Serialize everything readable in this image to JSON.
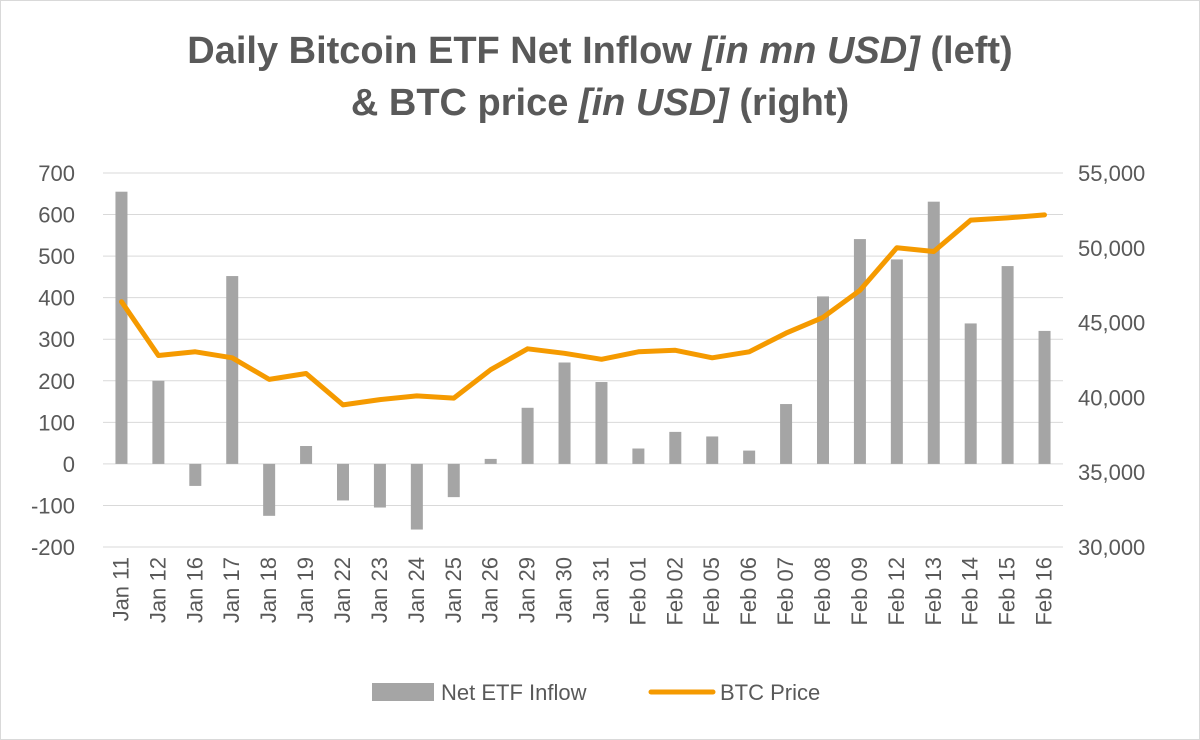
{
  "title": {
    "line1_a": "Daily Bitcoin ETF Net Inflow ",
    "line1_b": "[in mn USD]",
    "line1_c": " (left)",
    "line2_a": "& BTC price ",
    "line2_b": "[in USD]",
    "line2_c": " (right)"
  },
  "colors": {
    "bars": "#a5a5a5",
    "line": "#f59a00",
    "grid": "#d9d9d9",
    "text": "#595959"
  },
  "chart_data": {
    "type": "bar",
    "grid": true,
    "legend_position": "bottom",
    "categories": [
      "Jan 11",
      "Jan 12",
      "Jan 16",
      "Jan 17",
      "Jan 18",
      "Jan 19",
      "Jan 22",
      "Jan 23",
      "Jan 24",
      "Jan 25",
      "Jan 26",
      "Jan 29",
      "Jan 30",
      "Jan 31",
      "Feb 01",
      "Feb 02",
      "Feb 05",
      "Feb 06",
      "Feb 07",
      "Feb 08",
      "Feb 09",
      "Feb 12",
      "Feb 13",
      "Feb 14",
      "Feb 15",
      "Feb 16"
    ],
    "left_axis": {
      "min": -200,
      "max": 700,
      "ticks": [
        "-200",
        "-100",
        "0",
        "100",
        "200",
        "300",
        "400",
        "500",
        "600",
        "700"
      ]
    },
    "right_axis": {
      "min": 30000,
      "max": 55000,
      "ticks": [
        "30,000",
        "35,000",
        "40,000",
        "45,000",
        "50,000",
        "55,000"
      ]
    },
    "series": [
      {
        "name": "Net ETF Inflow",
        "type": "bar",
        "axis": "left",
        "values": [
          655,
          200,
          -53,
          452,
          -125,
          43,
          -88,
          -105,
          -158,
          -80,
          12,
          135,
          244,
          197,
          37,
          77,
          66,
          32,
          144,
          403,
          541,
          492,
          631,
          338,
          476,
          320
        ]
      },
      {
        "name": "BTC Price",
        "type": "line",
        "axis": "right",
        "values": [
          46400,
          42800,
          43050,
          42650,
          41200,
          41600,
          39500,
          39850,
          40100,
          39950,
          41850,
          43250,
          42950,
          42550,
          43050,
          43150,
          42650,
          43050,
          44300,
          45350,
          47150,
          50000,
          49750,
          51850,
          52000,
          52200
        ]
      }
    ]
  }
}
